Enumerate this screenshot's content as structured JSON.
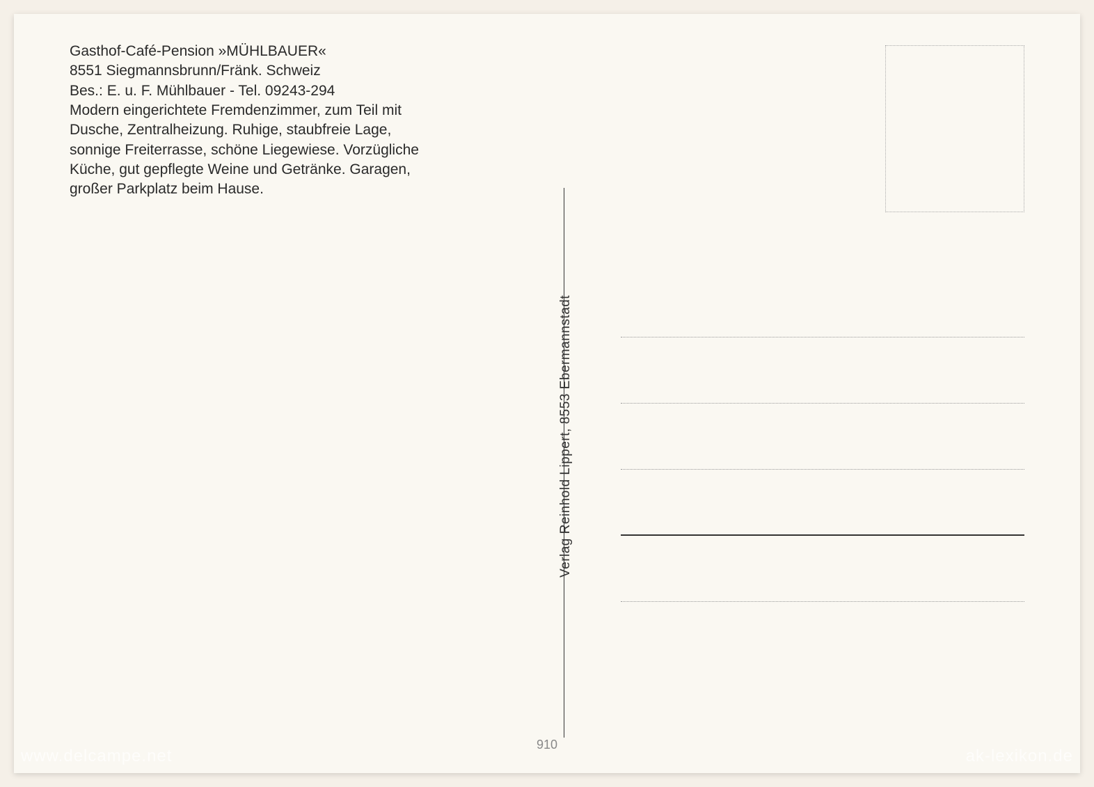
{
  "header": {
    "line1": "Gasthof-Café-Pension »MÜHLBAUER«",
    "line2": "8551 Siegmannsbrunn/Fränk. Schweiz",
    "line3": "Bes.: E. u. F. Mühlbauer - Tel. 09243-294",
    "line4": "Modern eingerichtete Fremdenzimmer, zum Teil mit",
    "line5": "Dusche, Zentralheizung. Ruhige, staubfreie Lage,",
    "line6": "sonnige Freiterrasse, schöne Liegewiese. Vorzügliche",
    "line7": "Küche, gut gepflegte Weine und Getränke. Garagen,",
    "line8": "großer Parkplatz beim Hause."
  },
  "publisher": "Verlag Reinhold Lippert, 8553 Ebermannstadt",
  "bottom_number": "910",
  "watermark_left": "www.delcampe.net",
  "watermark_right": "ak-lexikon.de",
  "colors": {
    "background": "#f5f0e8",
    "card": "#faf8f2",
    "text": "#2a2a2a",
    "divider": "#333",
    "dotted": "#999"
  }
}
